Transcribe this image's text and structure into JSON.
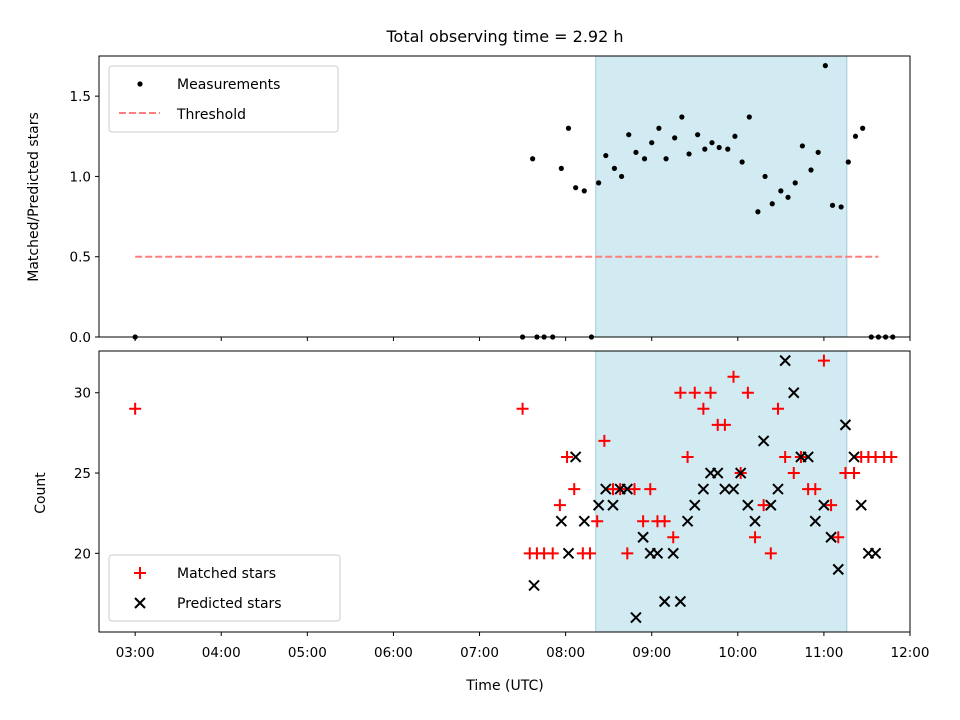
{
  "title": "Total observing time = 2.92 h",
  "x_label": "Time (UTC)",
  "x_ticks": [
    "03:00",
    "04:00",
    "05:00",
    "06:00",
    "07:00",
    "08:00",
    "09:00",
    "10:00",
    "11:00",
    "12:00"
  ],
  "shaded_interval": {
    "start": "08:21",
    "end": "11:16",
    "color": "#add8e6"
  },
  "colors": {
    "measurements": "#000000",
    "threshold": "#ff7f7f",
    "matched": "#ff0000",
    "predicted": "#000000"
  },
  "chart_data": [
    {
      "type": "scatter",
      "ylabel": "Matched/Predicted stars",
      "ylim": [
        0,
        1.75
      ],
      "y_ticks": [
        "0.0",
        "0.5",
        "1.0",
        "1.5"
      ],
      "legend_placement": "upper left",
      "legend": [
        "Measurements",
        "Threshold"
      ],
      "threshold": {
        "value": 0.5,
        "x_start": "03:00",
        "x_end": "11:38",
        "style": "dashed"
      },
      "measurements": [
        [
          "03:00",
          0.0
        ],
        [
          "07:30",
          0.0
        ],
        [
          "07:40",
          0.0
        ],
        [
          "07:45",
          0.0
        ],
        [
          "07:51",
          0.0
        ],
        [
          "07:37",
          1.11
        ],
        [
          "07:57",
          1.05
        ],
        [
          "08:02",
          1.3
        ],
        [
          "08:07",
          0.93
        ],
        [
          "08:13",
          0.91
        ],
        [
          "08:18",
          0.0
        ],
        [
          "08:23",
          0.96
        ],
        [
          "08:28",
          1.13
        ],
        [
          "08:34",
          1.05
        ],
        [
          "08:39",
          1.0
        ],
        [
          "08:44",
          1.26
        ],
        [
          "08:49",
          1.15
        ],
        [
          "08:55",
          1.11
        ],
        [
          "09:00",
          1.21
        ],
        [
          "09:05",
          1.3
        ],
        [
          "09:10",
          1.11
        ],
        [
          "09:16",
          1.24
        ],
        [
          "09:21",
          1.37
        ],
        [
          "09:26",
          1.14
        ],
        [
          "09:32",
          1.26
        ],
        [
          "09:37",
          1.17
        ],
        [
          "09:42",
          1.21
        ],
        [
          "09:47",
          1.18
        ],
        [
          "09:53",
          1.17
        ],
        [
          "09:58",
          1.25
        ],
        [
          "10:03",
          1.09
        ],
        [
          "10:08",
          1.37
        ],
        [
          "10:14",
          0.78
        ],
        [
          "10:19",
          1.0
        ],
        [
          "10:24",
          0.83
        ],
        [
          "10:30",
          0.91
        ],
        [
          "10:35",
          0.87
        ],
        [
          "10:40",
          0.96
        ],
        [
          "10:45",
          1.19
        ],
        [
          "10:51",
          1.04
        ],
        [
          "10:56",
          1.15
        ],
        [
          "11:01",
          1.69
        ],
        [
          "11:06",
          0.82
        ],
        [
          "11:12",
          0.81
        ],
        [
          "11:17",
          1.09
        ],
        [
          "11:22",
          1.25
        ],
        [
          "11:27",
          1.3
        ],
        [
          "11:33",
          0.0
        ],
        [
          "11:38",
          0.0
        ],
        [
          "11:43",
          0.0
        ],
        [
          "11:48",
          0.0
        ]
      ]
    },
    {
      "type": "scatter",
      "ylabel": "Count",
      "ylim": [
        15.1,
        32.6
      ],
      "y_ticks": [
        "20",
        "25",
        "30"
      ],
      "xlabel": "Time (UTC)",
      "legend_placement": "lower left",
      "series": [
        {
          "name": "Matched stars",
          "marker": "+",
          "points": [
            [
              "03:00",
              29
            ],
            [
              "07:30",
              29
            ],
            [
              "07:35",
              20
            ],
            [
              "07:40",
              20
            ],
            [
              "07:45",
              20
            ],
            [
              "07:51",
              20
            ],
            [
              "07:56",
              23
            ],
            [
              "08:01",
              26
            ],
            [
              "08:06",
              24
            ],
            [
              "08:12",
              20
            ],
            [
              "08:17",
              20
            ],
            [
              "08:22",
              22
            ],
            [
              "08:27",
              27
            ],
            [
              "08:33",
              24
            ],
            [
              "08:38",
              24
            ],
            [
              "08:43",
              20
            ],
            [
              "08:48",
              24
            ],
            [
              "08:54",
              22
            ],
            [
              "08:59",
              24
            ],
            [
              "09:04",
              22
            ],
            [
              "09:09",
              22
            ],
            [
              "09:15",
              21
            ],
            [
              "09:20",
              30
            ],
            [
              "09:25",
              26
            ],
            [
              "09:30",
              30
            ],
            [
              "09:36",
              29
            ],
            [
              "09:41",
              30
            ],
            [
              "09:46",
              28
            ],
            [
              "09:51",
              28
            ],
            [
              "09:57",
              31
            ],
            [
              "10:02",
              25
            ],
            [
              "10:07",
              30
            ],
            [
              "10:12",
              21
            ],
            [
              "10:18",
              23
            ],
            [
              "10:23",
              20
            ],
            [
              "10:28",
              29
            ],
            [
              "10:33",
              26
            ],
            [
              "10:39",
              25
            ],
            [
              "10:44",
              26
            ],
            [
              "10:49",
              24
            ],
            [
              "10:54",
              24
            ],
            [
              "11:00",
              32
            ],
            [
              "11:05",
              23
            ],
            [
              "11:10",
              21
            ],
            [
              "11:15",
              25
            ],
            [
              "11:21",
              25
            ],
            [
              "11:26",
              26
            ],
            [
              "11:31",
              26
            ],
            [
              "11:36",
              26
            ],
            [
              "11:42",
              26
            ],
            [
              "11:47",
              26
            ]
          ]
        },
        {
          "name": "Predicted stars",
          "marker": "x",
          "points": [
            [
              "07:38",
              18
            ],
            [
              "07:57",
              22
            ],
            [
              "08:02",
              20
            ],
            [
              "08:07",
              26
            ],
            [
              "08:13",
              22
            ],
            [
              "08:23",
              23
            ],
            [
              "08:28",
              24
            ],
            [
              "08:33",
              23
            ],
            [
              "08:38",
              24
            ],
            [
              "08:43",
              24
            ],
            [
              "08:49",
              16
            ],
            [
              "08:54",
              21
            ],
            [
              "08:59",
              20
            ],
            [
              "09:04",
              20
            ],
            [
              "09:09",
              17
            ],
            [
              "09:15",
              20
            ],
            [
              "09:20",
              17
            ],
            [
              "09:25",
              22
            ],
            [
              "09:30",
              23
            ],
            [
              "09:36",
              24
            ],
            [
              "09:41",
              25
            ],
            [
              "09:46",
              25
            ],
            [
              "09:51",
              24
            ],
            [
              "09:57",
              24
            ],
            [
              "10:02",
              25
            ],
            [
              "10:07",
              23
            ],
            [
              "10:12",
              22
            ],
            [
              "10:18",
              27
            ],
            [
              "10:23",
              23
            ],
            [
              "10:28",
              24
            ],
            [
              "10:33",
              32
            ],
            [
              "10:39",
              30
            ],
            [
              "10:44",
              26
            ],
            [
              "10:49",
              26
            ],
            [
              "10:54",
              22
            ],
            [
              "11:00",
              23
            ],
            [
              "11:05",
              21
            ],
            [
              "11:10",
              19
            ],
            [
              "11:15",
              28
            ],
            [
              "11:21",
              26
            ],
            [
              "11:26",
              23
            ],
            [
              "11:31",
              20
            ],
            [
              "11:36",
              20
            ]
          ]
        }
      ]
    }
  ]
}
